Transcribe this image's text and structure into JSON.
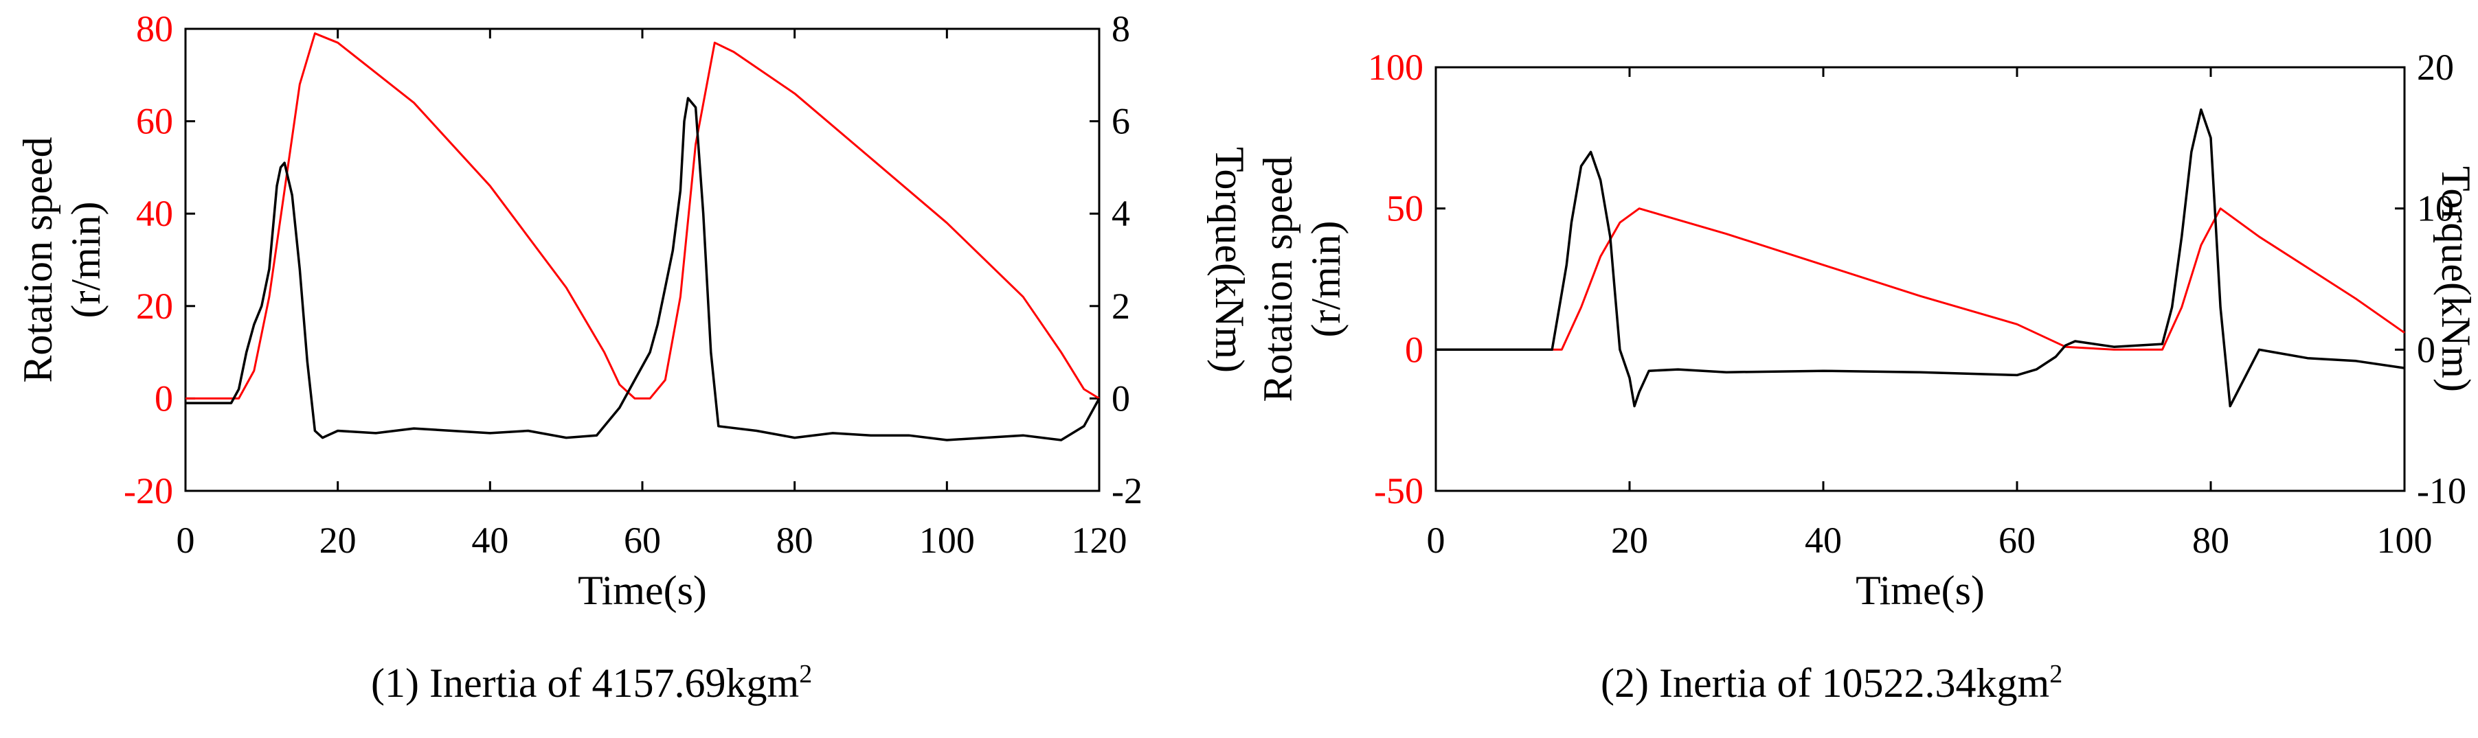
{
  "colors": {
    "speed": "#ff0000",
    "torque": "#000000",
    "axis": "#000000",
    "frame_bg": "#ffffff"
  },
  "captions": [
    {
      "prefix": "(1) Inertia of 4157.69kgm",
      "sup": "2"
    },
    {
      "prefix": "(2) Inertia of 10522.34kgm",
      "sup": "2"
    }
  ],
  "chart_data": [
    {
      "type": "line",
      "title": "",
      "xlabel": "Time(s)",
      "ylabel_left": [
        "Rotation speed",
        "(r/min)"
      ],
      "ylabel_right": "Torque(kNm)",
      "xlim": [
        0,
        120
      ],
      "ylim_left": [
        -20,
        80
      ],
      "ylim_right": [
        -2,
        8
      ],
      "xticks": [
        "0",
        "20",
        "40",
        "60",
        "80",
        "100",
        "120"
      ],
      "yticks_left": [
        "-20",
        "0",
        "20",
        "40",
        "60",
        "80"
      ],
      "yticks_right": [
        "-2",
        "0",
        "2",
        "4",
        "6",
        "8"
      ],
      "series": [
        {
          "name": "Rotation speed",
          "axis": "left",
          "x": [
            0,
            7,
            9,
            11,
            13,
            15,
            17,
            20,
            30,
            40,
            50,
            55,
            57,
            59,
            61,
            63,
            65,
            67,
            69.5,
            72,
            80,
            90,
            100,
            110,
            115,
            118,
            120
          ],
          "values": [
            0,
            0,
            6,
            22,
            45,
            68,
            79,
            77,
            64,
            46,
            24,
            10,
            3,
            0,
            0,
            4,
            22,
            55,
            77,
            75,
            66,
            52,
            38,
            22,
            10,
            2,
            0
          ]
        },
        {
          "name": "Torque",
          "axis": "right",
          "x": [
            0,
            6,
            7,
            8,
            9,
            10,
            11,
            12,
            12.5,
            13,
            14,
            15,
            16,
            17,
            18,
            20,
            25,
            30,
            35,
            40,
            45,
            50,
            54,
            57,
            59,
            61,
            62,
            63,
            64,
            65,
            65.5,
            66,
            67,
            68,
            69,
            70,
            75,
            80,
            85,
            90,
            95,
            100,
            105,
            110,
            115,
            118,
            120
          ],
          "values": [
            -0.1,
            -0.1,
            0.2,
            1.0,
            1.6,
            2.0,
            2.8,
            4.6,
            5.0,
            5.1,
            4.4,
            2.8,
            0.8,
            -0.7,
            -0.85,
            -0.7,
            -0.75,
            -0.65,
            -0.7,
            -0.75,
            -0.7,
            -0.85,
            -0.8,
            -0.2,
            0.4,
            1.0,
            1.6,
            2.4,
            3.2,
            4.5,
            6.0,
            6.5,
            6.3,
            4.0,
            1.0,
            -0.6,
            -0.7,
            -0.85,
            -0.75,
            -0.8,
            -0.8,
            -0.9,
            -0.85,
            -0.8,
            -0.9,
            -0.6,
            0.0
          ]
        }
      ]
    },
    {
      "type": "line",
      "title": "",
      "xlabel": "Time(s)",
      "ylabel_left": [
        "Rotation speed",
        "(r/min)"
      ],
      "ylabel_right": "Torque(kNm)",
      "xlim": [
        0,
        100
      ],
      "ylim_left": [
        -50,
        100
      ],
      "ylim_right": [
        -10,
        20
      ],
      "xticks": [
        "0",
        "20",
        "40",
        "60",
        "80",
        "100"
      ],
      "yticks_left": [
        "-50",
        "0",
        "50",
        "100"
      ],
      "yticks_right": [
        "-10",
        "0",
        "10",
        "20"
      ],
      "series": [
        {
          "name": "Rotation speed",
          "axis": "left",
          "x": [
            0,
            13,
            15,
            17,
            19,
            21,
            30,
            40,
            50,
            60,
            65,
            70,
            75,
            77,
            79,
            81,
            85,
            90,
            95,
            100
          ],
          "values": [
            0,
            0,
            15,
            33,
            45,
            50,
            41,
            30,
            19,
            9,
            1,
            0,
            0,
            15,
            37,
            50,
            40,
            29,
            18,
            6
          ]
        },
        {
          "name": "Torque",
          "axis": "right",
          "x": [
            0,
            12,
            13,
            13.5,
            14,
            15,
            16,
            17,
            18,
            18.5,
            19,
            20,
            20.5,
            21,
            22,
            25,
            30,
            40,
            50,
            60,
            62,
            64,
            65,
            66,
            70,
            75,
            76,
            77,
            78,
            79,
            80,
            80.5,
            81,
            82,
            85,
            90,
            95,
            100
          ],
          "values": [
            0,
            0,
            4,
            6,
            9,
            13,
            14,
            12,
            8,
            4,
            0,
            -2,
            -4,
            -3,
            -1.5,
            -1.4,
            -1.6,
            -1.5,
            -1.6,
            -1.8,
            -1.4,
            -0.5,
            0.3,
            0.6,
            0.2,
            0.4,
            3,
            8,
            14,
            17,
            15,
            9,
            3,
            -4,
            0,
            -0.6,
            -0.8,
            -1.3
          ]
        }
      ]
    }
  ]
}
